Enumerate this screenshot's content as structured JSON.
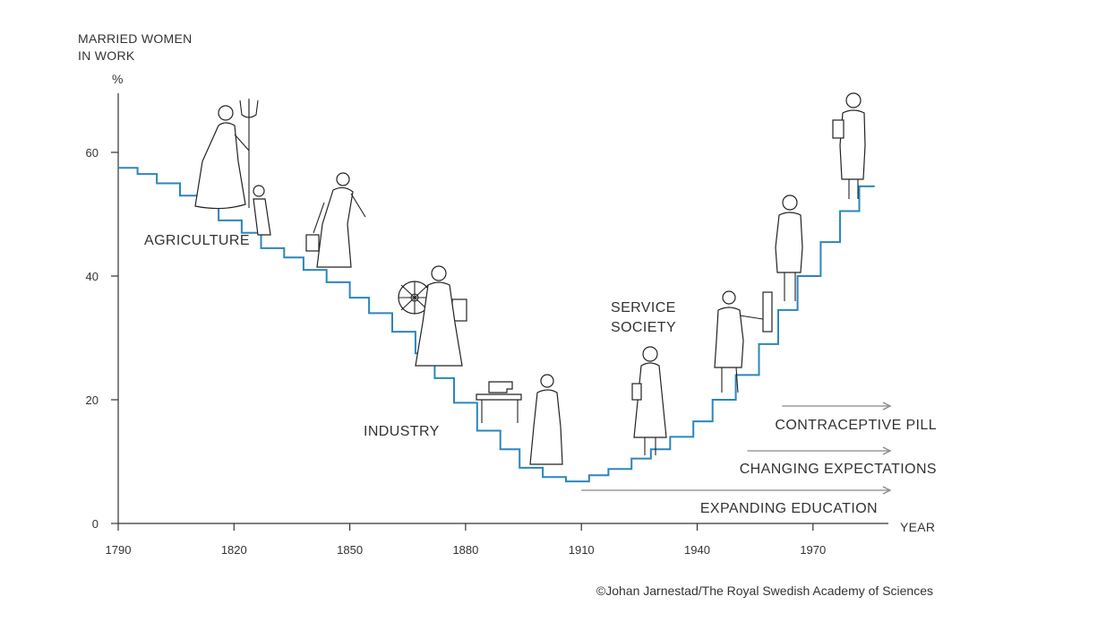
{
  "chart_data": {
    "type": "line",
    "step": true,
    "ylabel_lines": [
      "MARRIED WOMEN",
      "IN WORK"
    ],
    "yunit": "%",
    "xlabel": "YEAR",
    "xlim": [
      1790,
      1980
    ],
    "ylim": [
      0,
      67
    ],
    "x_ticks": [
      1790,
      1820,
      1850,
      1880,
      1910,
      1940,
      1970
    ],
    "y_ticks": [
      0,
      20,
      40,
      60
    ],
    "line_color": "#2b86bd",
    "series": [
      {
        "x": [
          1790,
          1795,
          1800,
          1806,
          1811,
          1816,
          1822,
          1827,
          1833,
          1838,
          1844,
          1850,
          1855,
          1861,
          1867,
          1872,
          1877,
          1883,
          1889,
          1894,
          1900,
          1906,
          1912,
          1917,
          1923,
          1928,
          1933,
          1939,
          1944,
          1950,
          1956,
          1961,
          1966,
          1972,
          1977,
          1982,
          1986
        ],
        "y": [
          57.5,
          56.5,
          55,
          53,
          51.5,
          49,
          47,
          44.5,
          43,
          41,
          39,
          36.5,
          34,
          31,
          27.5,
          23.5,
          19.5,
          15,
          12,
          9,
          7.5,
          6.8,
          7.8,
          8.8,
          10.5,
          12,
          14,
          16.5,
          20,
          24,
          29,
          34.5,
          40,
          45.5,
          50.5,
          54.5,
          54.5
        ]
      }
    ],
    "annotations": [
      {
        "text": "AGRICULTURE"
      },
      {
        "text": "INDUSTRY"
      },
      {
        "text": "SERVICE",
        "text2": "SOCIETY"
      }
    ],
    "arrows": [
      {
        "label": "CONTRACEPTIVE PILL",
        "from": 1962,
        "to": 1990
      },
      {
        "label": "CHANGING EXPECTATIONS",
        "from": 1953,
        "to": 1990
      },
      {
        "label": "EXPANDING EDUCATION",
        "from": 1910,
        "to": 1990
      }
    ],
    "credit": "©Johan Jarnestad/The Royal Swedish Academy of Sciences"
  }
}
